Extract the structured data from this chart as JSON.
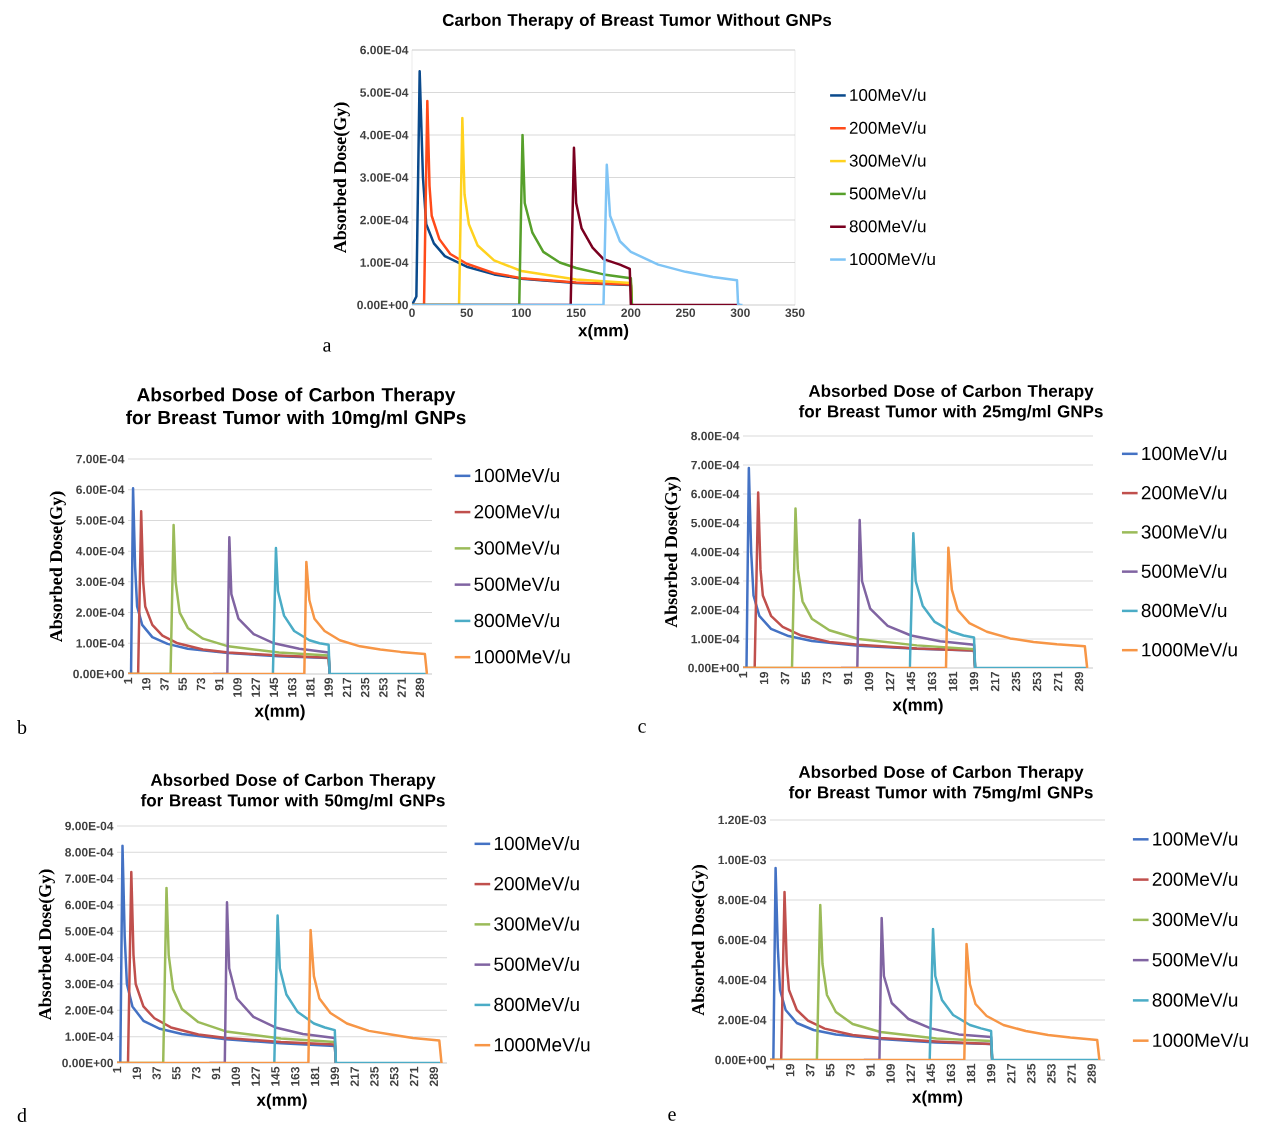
{
  "chart_data": [
    {
      "type": "line",
      "title": "Carbon Therapy of Breast Tumor Without GNPs",
      "xlabel": "x(mm)",
      "ylabel": "Absorbed Dose(Gy)",
      "annotations": [
        "a"
      ],
      "grid": "y",
      "legend": "right",
      "xlim": [
        0,
        350
      ],
      "xticks": [
        0,
        50,
        100,
        150,
        200,
        250,
        300,
        350
      ],
      "ylim": [
        0,
        0.0006
      ],
      "yticks": [
        {
          "value": 0,
          "label": "0.00E+00"
        },
        {
          "value": 0.0001,
          "label": "1.00E-04"
        },
        {
          "value": 0.0002,
          "label": "2.00E-04"
        },
        {
          "value": 0.0003,
          "label": "3.00E-04"
        },
        {
          "value": 0.0004,
          "label": "4.00E-04"
        },
        {
          "value": 0.0005,
          "label": "5.00E-04"
        },
        {
          "value": 0.0006,
          "label": "6.00E-04"
        }
      ],
      "series": [
        {
          "name": "100MeV/u",
          "color": "#0a4a8c",
          "x": [
            0,
            4,
            7,
            10,
            13,
            20,
            30,
            50,
            75,
            100,
            150,
            200,
            201
          ],
          "values": [
            0,
            2e-05,
            0.00055,
            0.0003,
            0.00019,
            0.000145,
            0.000115,
            9e-05,
            7.2e-05,
            6.2e-05,
            5.2e-05,
            4.7e-05,
            0
          ]
        },
        {
          "name": "200MeV/u",
          "color": "#ff4b1a",
          "x": [
            0,
            11,
            14,
            16,
            18,
            25,
            35,
            50,
            75,
            100,
            150,
            200,
            201
          ],
          "values": [
            0,
            0,
            0.00048,
            0.00028,
            0.00021,
            0.000155,
            0.00012,
            9.7e-05,
            7.5e-05,
            6.3e-05,
            5.3e-05,
            4.8e-05,
            0
          ]
        },
        {
          "name": "300MeV/u",
          "color": "#ffd21f",
          "x": [
            0,
            43,
            46,
            48,
            52,
            60,
            75,
            100,
            150,
            200,
            201
          ],
          "values": [
            0,
            0,
            0.00044,
            0.00026,
            0.00019,
            0.00014,
            0.000105,
            8e-05,
            6e-05,
            5.2e-05,
            0
          ]
        },
        {
          "name": "500MeV/u",
          "color": "#57a02b",
          "x": [
            0,
            98,
            101,
            103,
            110,
            120,
            135,
            150,
            175,
            200,
            201
          ],
          "values": [
            0,
            0,
            0.0004,
            0.00024,
            0.00017,
            0.000125,
            0.0001,
            8.7e-05,
            7.2e-05,
            6.3e-05,
            0
          ]
        },
        {
          "name": "800MeV/u",
          "color": "#7a0020",
          "x": [
            0,
            145,
            148,
            150,
            155,
            165,
            175,
            190,
            199,
            200,
            300
          ],
          "values": [
            0,
            0,
            0.00037,
            0.00024,
            0.00018,
            0.000135,
            0.000108,
            9.5e-05,
            8.5e-05,
            0,
            0
          ]
        },
        {
          "name": "1000MeV/u",
          "color": "#7fc4f5",
          "x": [
            0,
            175,
            178,
            181,
            190,
            200,
            225,
            250,
            275,
            297,
            298,
            302
          ],
          "values": [
            0,
            0,
            0.00033,
            0.00021,
            0.00015,
            0.000125,
            9.5e-05,
            7.8e-05,
            6.6e-05,
            5.8e-05,
            0,
            0
          ]
        }
      ]
    },
    {
      "type": "line",
      "title": "Absorbed Dose of Carbon Therapy for Breast Tumor with 10mg/ml GNPs",
      "xlabel": "x(mm)",
      "ylabel": "Absorbed Dose(Gy)",
      "annotations": [
        "b"
      ],
      "grid": "y",
      "legend": "right",
      "xlim": [
        1,
        301
      ],
      "xticks": [
        1,
        19,
        37,
        55,
        73,
        91,
        109,
        127,
        145,
        163,
        181,
        199,
        217,
        235,
        253,
        271,
        289
      ],
      "ylim": [
        0,
        0.0007
      ],
      "yticks": [
        {
          "value": 0,
          "label": "0.00E+00"
        },
        {
          "value": 0.0001,
          "label": "1.00E-04"
        },
        {
          "value": 0.0002,
          "label": "2.00E-04"
        },
        {
          "value": 0.0003,
          "label": "3.00E-04"
        },
        {
          "value": 0.0004,
          "label": "4.00E-04"
        },
        {
          "value": 0.0005,
          "label": "5.00E-04"
        },
        {
          "value": 0.0006,
          "label": "6.00E-04"
        },
        {
          "value": 0.0007,
          "label": "7.00E-04"
        }
      ],
      "series": [
        {
          "name": "100MeV/u",
          "color": "#4472c4",
          "x": [
            1,
            4,
            6,
            8,
            10,
            15,
            25,
            40,
            60,
            100,
            150,
            199,
            200
          ],
          "values": [
            0,
            0,
            0.000605,
            0.00035,
            0.00022,
            0.00016,
            0.00012,
            9.8e-05,
            8.2e-05,
            6.8e-05,
            5.8e-05,
            5.2e-05,
            0
          ]
        },
        {
          "name": "200MeV/u",
          "color": "#c0504d",
          "x": [
            1,
            11,
            14,
            16,
            18,
            25,
            35,
            50,
            75,
            100,
            150,
            199,
            200
          ],
          "values": [
            0,
            0,
            0.00053,
            0.0003,
            0.00022,
            0.00016,
            0.000125,
            0.0001,
            8e-05,
            7e-05,
            6e-05,
            5.3e-05,
            0
          ]
        },
        {
          "name": "300MeV/u",
          "color": "#9bbb59",
          "x": [
            1,
            43,
            46,
            48,
            52,
            60,
            75,
            100,
            150,
            199,
            200
          ],
          "values": [
            0,
            0,
            0.000485,
            0.0003,
            0.0002,
            0.00015,
            0.000115,
            9e-05,
            7e-05,
            6e-05,
            0
          ]
        },
        {
          "name": "500MeV/u",
          "color": "#8064a2",
          "x": [
            85,
            99,
            101,
            103,
            110,
            125,
            145,
            170,
            199,
            200
          ],
          "values": [
            0,
            0,
            0.000445,
            0.00026,
            0.00018,
            0.00013,
            0.0001,
            8.2e-05,
            7e-05,
            0
          ]
        },
        {
          "name": "800MeV/u",
          "color": "#4bacc6",
          "x": [
            144,
            147,
            149,
            155,
            165,
            180,
            190,
            199,
            200,
            295
          ],
          "values": [
            0,
            0.00041,
            0.00027,
            0.00019,
            0.00014,
            0.00011,
            0.0001,
            9.5e-05,
            0,
            0
          ]
        },
        {
          "name": "1000MeV/u",
          "color": "#f79646",
          "x": [
            1,
            175,
            177,
            180,
            185,
            195,
            210,
            230,
            250,
            270,
            294,
            296
          ],
          "values": [
            0,
            0,
            0.000365,
            0.00024,
            0.00018,
            0.00014,
            0.00011,
            9e-05,
            8e-05,
            7.2e-05,
            6.5e-05,
            0
          ]
        }
      ]
    },
    {
      "type": "line",
      "title": "Absorbed Dose of Carbon Therapy for Breast Tumor with 25mg/ml GNPs",
      "xlabel": "x(mm)",
      "ylabel": "Absorbed Dose(Gy)",
      "annotations": [
        "c"
      ],
      "grid": "y",
      "legend": "right",
      "xlim": [
        1,
        301
      ],
      "xticks": [
        1,
        19,
        37,
        55,
        73,
        91,
        109,
        127,
        145,
        163,
        181,
        199,
        217,
        235,
        253,
        271,
        289
      ],
      "ylim": [
        0,
        0.0008
      ],
      "yticks": [
        {
          "value": 0,
          "label": "0.00E+00"
        },
        {
          "value": 0.0001,
          "label": "1.00E-04"
        },
        {
          "value": 0.0002,
          "label": "2.00E-04"
        },
        {
          "value": 0.0003,
          "label": "3.00E-04"
        },
        {
          "value": 0.0004,
          "label": "4.00E-04"
        },
        {
          "value": 0.0005,
          "label": "5.00E-04"
        },
        {
          "value": 0.0006,
          "label": "6.00E-04"
        },
        {
          "value": 0.0007,
          "label": "7.00E-04"
        },
        {
          "value": 0.0008,
          "label": "8.00E-04"
        }
      ],
      "series": [
        {
          "name": "100MeV/u",
          "color": "#4472c4",
          "x": [
            1,
            4,
            6,
            8,
            10,
            15,
            25,
            40,
            60,
            100,
            150,
            199,
            200
          ],
          "values": [
            0,
            0,
            0.00069,
            0.0004,
            0.00025,
            0.00018,
            0.000135,
            0.00011,
            9.3e-05,
            7.7e-05,
            6.6e-05,
            6e-05,
            0
          ]
        },
        {
          "name": "200MeV/u",
          "color": "#c0504d",
          "x": [
            1,
            11,
            14,
            16,
            18,
            25,
            35,
            50,
            75,
            100,
            150,
            199,
            200
          ],
          "values": [
            0,
            0,
            0.000605,
            0.00034,
            0.00025,
            0.00018,
            0.000142,
            0.000113,
            9e-05,
            8e-05,
            6.7e-05,
            6e-05,
            0
          ]
        },
        {
          "name": "300MeV/u",
          "color": "#9bbb59",
          "x": [
            1,
            43,
            46,
            48,
            52,
            60,
            75,
            100,
            150,
            199,
            200
          ],
          "values": [
            0,
            0,
            0.00055,
            0.00034,
            0.00023,
            0.00017,
            0.00013,
            0.0001,
            7.8e-05,
            6.5e-05,
            0
          ]
        },
        {
          "name": "500MeV/u",
          "color": "#8064a2",
          "x": [
            85,
            99,
            101,
            103,
            110,
            125,
            145,
            170,
            199,
            200
          ],
          "values": [
            0,
            0,
            0.00051,
            0.0003,
            0.000205,
            0.000145,
            0.000112,
            9.2e-05,
            8e-05,
            0
          ]
        },
        {
          "name": "800MeV/u",
          "color": "#4bacc6",
          "x": [
            144,
            147,
            149,
            155,
            165,
            180,
            190,
            199,
            200,
            295
          ],
          "values": [
            0,
            0.000465,
            0.0003,
            0.000215,
            0.00016,
            0.000125,
            0.000112,
            0.000105,
            0,
            0
          ]
        },
        {
          "name": "1000MeV/u",
          "color": "#f79646",
          "x": [
            1,
            175,
            177,
            180,
            185,
            195,
            210,
            230,
            250,
            270,
            294,
            296
          ],
          "values": [
            0,
            0,
            0.000415,
            0.00027,
            0.0002,
            0.000155,
            0.000125,
            0.000102,
            9e-05,
            8.2e-05,
            7.5e-05,
            0
          ]
        }
      ]
    },
    {
      "type": "line",
      "title": "Absorbed Dose of Carbon Therapy for Breast Tumor with 50mg/ml GNPs",
      "xlabel": "x(mm)",
      "ylabel": "Absorbed Dose(Gy)",
      "annotations": [
        "d"
      ],
      "grid": "y",
      "legend": "right",
      "xlim": [
        1,
        301
      ],
      "xticks": [
        1,
        19,
        37,
        55,
        73,
        91,
        109,
        127,
        145,
        163,
        181,
        199,
        217,
        235,
        253,
        271,
        289
      ],
      "ylim": [
        0,
        0.0009
      ],
      "yticks": [
        {
          "value": 0,
          "label": "0.00E+00"
        },
        {
          "value": 0.0001,
          "label": "1.00E-04"
        },
        {
          "value": 0.0002,
          "label": "2.00E-04"
        },
        {
          "value": 0.0003,
          "label": "3.00E-04"
        },
        {
          "value": 0.0004,
          "label": "4.00E-04"
        },
        {
          "value": 0.0005,
          "label": "5.00E-04"
        },
        {
          "value": 0.0006,
          "label": "6.00E-04"
        },
        {
          "value": 0.0007,
          "label": "7.00E-04"
        },
        {
          "value": 0.0008,
          "label": "8.00E-04"
        },
        {
          "value": 0.0009,
          "label": "9.00E-04"
        }
      ],
      "series": [
        {
          "name": "100MeV/u",
          "color": "#4472c4",
          "x": [
            1,
            4,
            6,
            8,
            10,
            15,
            25,
            40,
            60,
            100,
            150,
            199,
            200
          ],
          "values": [
            0,
            0,
            0.000825,
            0.00048,
            0.0003,
            0.000215,
            0.00016,
            0.00013,
            0.00011,
            9e-05,
            7.5e-05,
            6.5e-05,
            0
          ]
        },
        {
          "name": "200MeV/u",
          "color": "#c0504d",
          "x": [
            1,
            11,
            14,
            16,
            18,
            25,
            35,
            50,
            75,
            100,
            150,
            199,
            200
          ],
          "values": [
            0,
            0,
            0.000725,
            0.00041,
            0.0003,
            0.000215,
            0.00017,
            0.000135,
            0.000108,
            9.5e-05,
            8e-05,
            7e-05,
            0
          ]
        },
        {
          "name": "300MeV/u",
          "color": "#9bbb59",
          "x": [
            1,
            43,
            46,
            48,
            52,
            60,
            75,
            100,
            150,
            199,
            200
          ],
          "values": [
            0,
            0,
            0.000665,
            0.00041,
            0.00028,
            0.000205,
            0.000155,
            0.00012,
            9.3e-05,
            8e-05,
            0
          ]
        },
        {
          "name": "500MeV/u",
          "color": "#8064a2",
          "x": [
            85,
            99,
            101,
            103,
            110,
            125,
            145,
            170,
            199,
            200
          ],
          "values": [
            0,
            0,
            0.00061,
            0.00036,
            0.000245,
            0.000175,
            0.000135,
            0.00011,
            9.5e-05,
            0
          ]
        },
        {
          "name": "800MeV/u",
          "color": "#4bacc6",
          "x": [
            144,
            147,
            149,
            155,
            165,
            180,
            190,
            199,
            200,
            295
          ],
          "values": [
            0,
            0.00056,
            0.00036,
            0.00026,
            0.000195,
            0.00015,
            0.000135,
            0.000125,
            0,
            0
          ]
        },
        {
          "name": "1000MeV/u",
          "color": "#f79646",
          "x": [
            1,
            175,
            177,
            180,
            185,
            195,
            210,
            230,
            250,
            270,
            294,
            296
          ],
          "values": [
            0,
            0,
            0.000505,
            0.00033,
            0.000245,
            0.00019,
            0.00015,
            0.000122,
            0.000108,
            9.5e-05,
            8.5e-05,
            0
          ]
        }
      ]
    },
    {
      "type": "line",
      "title": "Absorbed Dose of Carbon Therapy for Breast Tumor with 75mg/ml GNPs",
      "xlabel": "x(mm)",
      "ylabel": "Absorbed Dose(Gy)",
      "annotations": [
        "e"
      ],
      "grid": "y",
      "legend": "right",
      "xlim": [
        1,
        301
      ],
      "xticks": [
        1,
        19,
        37,
        55,
        73,
        91,
        109,
        127,
        145,
        163,
        181,
        199,
        217,
        235,
        253,
        271,
        289
      ],
      "ylim": [
        0,
        0.0012
      ],
      "yticks": [
        {
          "value": 0,
          "label": "0.00E+00"
        },
        {
          "value": 0.0002,
          "label": "2.00E-04"
        },
        {
          "value": 0.0004,
          "label": "4.00E-04"
        },
        {
          "value": 0.0006,
          "label": "6.00E-04"
        },
        {
          "value": 0.0008,
          "label": "8.00E-04"
        },
        {
          "value": 0.001,
          "label": "1.00E-03"
        },
        {
          "value": 0.0012,
          "label": "1.20E-03"
        }
      ],
      "series": [
        {
          "name": "100MeV/u",
          "color": "#4472c4",
          "x": [
            1,
            4,
            6,
            8,
            10,
            15,
            25,
            40,
            60,
            100,
            150,
            199,
            200
          ],
          "values": [
            0,
            0,
            0.00096,
            0.00056,
            0.00035,
            0.00025,
            0.000185,
            0.00015,
            0.000128,
            0.000105,
            8.8e-05,
            8e-05,
            0
          ]
        },
        {
          "name": "200MeV/u",
          "color": "#c0504d",
          "x": [
            1,
            11,
            14,
            16,
            18,
            25,
            35,
            50,
            75,
            100,
            150,
            199,
            200
          ],
          "values": [
            0,
            0,
            0.00084,
            0.00048,
            0.00035,
            0.00025,
            0.000197,
            0.000157,
            0.000125,
            0.00011,
            9.2e-05,
            8e-05,
            0
          ]
        },
        {
          "name": "300MeV/u",
          "color": "#9bbb59",
          "x": [
            1,
            43,
            46,
            48,
            52,
            60,
            75,
            100,
            150,
            199,
            200
          ],
          "values": [
            0,
            0,
            0.000775,
            0.00048,
            0.000325,
            0.00024,
            0.00018,
            0.00014,
            0.000108,
            9.5e-05,
            0
          ]
        },
        {
          "name": "500MeV/u",
          "color": "#8064a2",
          "x": [
            85,
            99,
            101,
            103,
            110,
            125,
            145,
            170,
            199,
            200
          ],
          "values": [
            0,
            0,
            0.00071,
            0.00042,
            0.000285,
            0.000205,
            0.000158,
            0.000128,
            0.000115,
            0
          ]
        },
        {
          "name": "800MeV/u",
          "color": "#4bacc6",
          "x": [
            144,
            147,
            149,
            155,
            165,
            180,
            190,
            199,
            200,
            295
          ],
          "values": [
            0,
            0.000655,
            0.00042,
            0.0003,
            0.000225,
            0.000175,
            0.000158,
            0.000145,
            0,
            0
          ]
        },
        {
          "name": "1000MeV/u",
          "color": "#f79646",
          "x": [
            1,
            175,
            177,
            180,
            185,
            195,
            210,
            230,
            250,
            270,
            294,
            296
          ],
          "values": [
            0,
            0,
            0.00058,
            0.00038,
            0.00028,
            0.00022,
            0.000175,
            0.000145,
            0.000125,
            0.000112,
            0.0001,
            0
          ]
        }
      ]
    }
  ]
}
